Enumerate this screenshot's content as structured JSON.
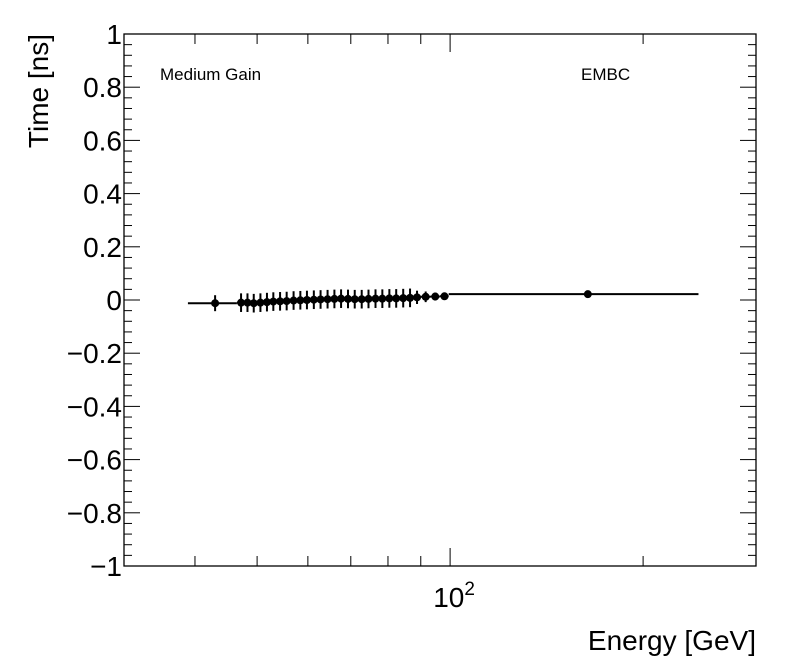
{
  "chart_data": {
    "type": "scatter",
    "title": "",
    "xlabel": "Energy [GeV]",
    "ylabel": "Time [ns]",
    "xscale": "log",
    "xlim": [
      31,
      300
    ],
    "ylim": [
      -1,
      1
    ],
    "grid": false,
    "legend": "none",
    "annotations": {
      "left": "Medium Gain",
      "right": "EMBC"
    },
    "x_tick_labels": [
      {
        "value": 100,
        "base": "10",
        "exp": "2"
      }
    ],
    "y_tick_labels": [
      "−1",
      "−0.8",
      "−0.6",
      "−0.4",
      "−0.2",
      "0",
      "0.2",
      "0.4",
      "0.6",
      "0.8",
      "1"
    ],
    "y_ticks": [
      -1,
      -0.8,
      -0.6,
      -0.4,
      -0.2,
      0,
      0.2,
      0.4,
      0.6,
      0.8,
      1
    ],
    "series": [
      {
        "points": [
          {
            "x": 43.0,
            "y": -0.012,
            "xlo": 39.0,
            "xhi": 46.5,
            "ylo": -0.042,
            "yhi": 0.018
          },
          {
            "x": 47.2,
            "y": -0.01,
            "xlo": 46.5,
            "xhi": 47.8,
            "ylo": -0.045,
            "yhi": 0.025
          },
          {
            "x": 48.3,
            "y": -0.01,
            "xlo": 47.8,
            "xhi": 48.8,
            "ylo": -0.045,
            "yhi": 0.025
          },
          {
            "x": 49.4,
            "y": -0.012,
            "xlo": 48.8,
            "xhi": 50.0,
            "ylo": -0.047,
            "yhi": 0.023
          },
          {
            "x": 50.6,
            "y": -0.01,
            "xlo": 50.0,
            "xhi": 51.2,
            "ylo": -0.045,
            "yhi": 0.025
          },
          {
            "x": 51.8,
            "y": -0.008,
            "xlo": 51.2,
            "xhi": 52.4,
            "ylo": -0.043,
            "yhi": 0.027
          },
          {
            "x": 53.0,
            "y": -0.006,
            "xlo": 52.4,
            "xhi": 53.6,
            "ylo": -0.041,
            "yhi": 0.029
          },
          {
            "x": 54.3,
            "y": -0.005,
            "xlo": 53.6,
            "xhi": 55.0,
            "ylo": -0.04,
            "yhi": 0.03
          },
          {
            "x": 55.6,
            "y": -0.004,
            "xlo": 55.0,
            "xhi": 56.3,
            "ylo": -0.039,
            "yhi": 0.031
          },
          {
            "x": 57.0,
            "y": -0.002,
            "xlo": 56.3,
            "xhi": 57.7,
            "ylo": -0.037,
            "yhi": 0.033
          },
          {
            "x": 58.4,
            "y": -0.001,
            "xlo": 57.7,
            "xhi": 59.1,
            "ylo": -0.036,
            "yhi": 0.034
          },
          {
            "x": 59.8,
            "y": 0.0,
            "xlo": 59.1,
            "xhi": 60.5,
            "ylo": -0.035,
            "yhi": 0.035
          },
          {
            "x": 61.3,
            "y": 0.001,
            "xlo": 60.5,
            "xhi": 62.0,
            "ylo": -0.034,
            "yhi": 0.036
          },
          {
            "x": 62.8,
            "y": 0.002,
            "xlo": 62.0,
            "xhi": 63.6,
            "ylo": -0.033,
            "yhi": 0.037
          },
          {
            "x": 64.4,
            "y": 0.003,
            "xlo": 63.6,
            "xhi": 65.2,
            "ylo": -0.032,
            "yhi": 0.038
          },
          {
            "x": 66.0,
            "y": 0.004,
            "xlo": 65.2,
            "xhi": 66.8,
            "ylo": -0.031,
            "yhi": 0.039
          },
          {
            "x": 67.6,
            "y": 0.005,
            "xlo": 66.8,
            "xhi": 68.4,
            "ylo": -0.03,
            "yhi": 0.04
          },
          {
            "x": 69.3,
            "y": 0.004,
            "xlo": 68.4,
            "xhi": 70.1,
            "ylo": -0.031,
            "yhi": 0.039
          },
          {
            "x": 71.0,
            "y": 0.003,
            "xlo": 70.1,
            "xhi": 71.9,
            "ylo": -0.032,
            "yhi": 0.038
          },
          {
            "x": 72.8,
            "y": 0.003,
            "xlo": 71.9,
            "xhi": 73.7,
            "ylo": -0.032,
            "yhi": 0.038
          },
          {
            "x": 74.6,
            "y": 0.004,
            "xlo": 73.7,
            "xhi": 75.5,
            "ylo": -0.031,
            "yhi": 0.039
          },
          {
            "x": 76.5,
            "y": 0.005,
            "xlo": 75.5,
            "xhi": 77.4,
            "ylo": -0.03,
            "yhi": 0.04
          },
          {
            "x": 78.4,
            "y": 0.005,
            "xlo": 77.4,
            "xhi": 79.4,
            "ylo": -0.03,
            "yhi": 0.04
          },
          {
            "x": 80.4,
            "y": 0.006,
            "xlo": 79.4,
            "xhi": 81.4,
            "ylo": -0.029,
            "yhi": 0.041
          },
          {
            "x": 82.4,
            "y": 0.006,
            "xlo": 81.4,
            "xhi": 83.4,
            "ylo": -0.029,
            "yhi": 0.041
          },
          {
            "x": 84.5,
            "y": 0.007,
            "xlo": 83.4,
            "xhi": 85.5,
            "ylo": -0.028,
            "yhi": 0.042
          },
          {
            "x": 86.6,
            "y": 0.008,
            "xlo": 85.5,
            "xhi": 87.7,
            "ylo": -0.027,
            "yhi": 0.043
          },
          {
            "x": 88.8,
            "y": 0.01,
            "xlo": 87.7,
            "xhi": 90.0,
            "ylo": -0.015,
            "yhi": 0.035
          },
          {
            "x": 91.6,
            "y": 0.012,
            "xlo": 90.0,
            "xhi": 93.2,
            "ylo": -0.008,
            "yhi": 0.032
          },
          {
            "x": 94.8,
            "y": 0.013,
            "xlo": 93.2,
            "xhi": 96.4,
            "ylo": -0.002,
            "yhi": 0.028
          },
          {
            "x": 98.0,
            "y": 0.014,
            "xlo": 96.4,
            "xhi": 99.5,
            "ylo": 0.0,
            "yhi": 0.028
          },
          {
            "x": 164.0,
            "y": 0.022,
            "xlo": 99.5,
            "xhi": 244.0,
            "ylo": 0.014,
            "yhi": 0.03
          }
        ]
      }
    ]
  }
}
